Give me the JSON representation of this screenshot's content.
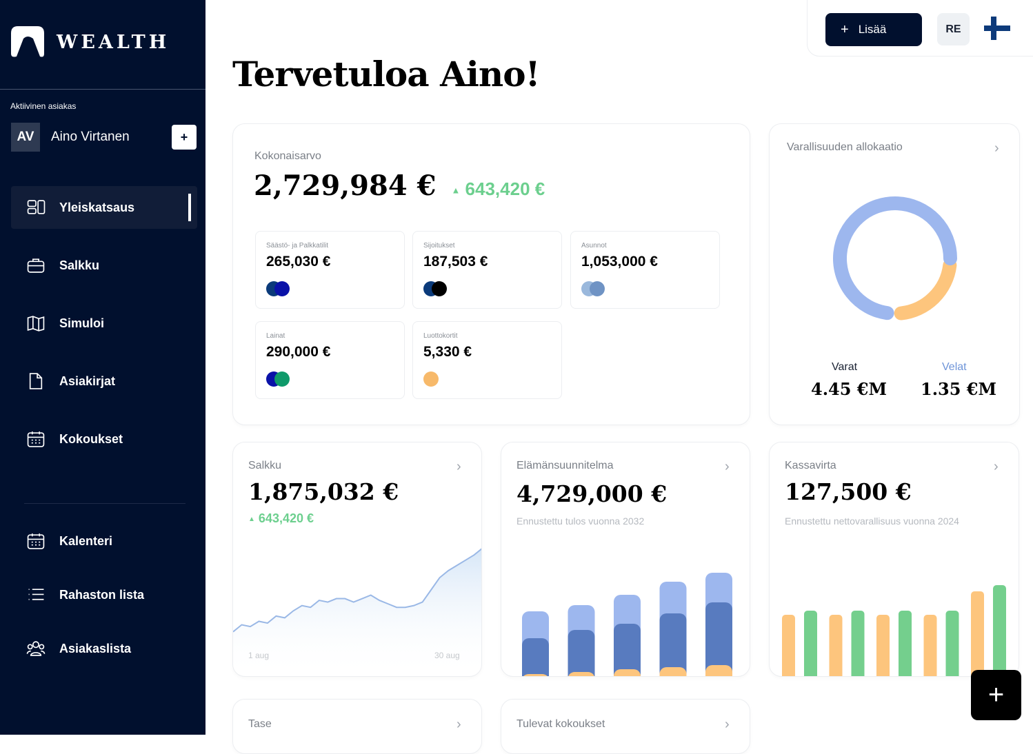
{
  "brand": {
    "name": "WEALTH"
  },
  "sidebar": {
    "active_client_label": "Aktiivinen asiakas",
    "client_initials": "AV",
    "client_name": "Aino Virtanen",
    "add_client": "+",
    "items": [
      {
        "label": "Yleiskatsaus",
        "icon": "dashboard-icon",
        "active": true
      },
      {
        "label": "Salkku",
        "icon": "briefcase-icon"
      },
      {
        "label": "Simuloi",
        "icon": "map-icon"
      },
      {
        "label": "Asiakirjat",
        "icon": "document-icon"
      },
      {
        "label": "Kokoukset",
        "icon": "calendar-icon"
      },
      {
        "label": "Kalenteri",
        "icon": "calendar-icon"
      },
      {
        "label": "Rahaston lista",
        "icon": "list-icon"
      },
      {
        "label": "Asiakaslista",
        "icon": "users-icon"
      }
    ]
  },
  "topbar": {
    "add_label": "Lisää",
    "add_icon": "+",
    "user_initials": "RE",
    "flag": "finland-flag-icon"
  },
  "greeting": "Tervetuloa Aino!",
  "total": {
    "title": "Kokonaisarvo",
    "value": "2,729,984 €",
    "change": "643,420 €",
    "accounts": [
      {
        "label": "Säästö- ja Palkkatilit",
        "value": "265,030 €",
        "logos": [
          "#0b3a7a",
          "#0a12a8"
        ]
      },
      {
        "label": "Sijoitukset",
        "value": "187,503 €",
        "logos": [
          "#0b3a7a",
          "#000000"
        ]
      },
      {
        "label": "Asunnot",
        "value": "1,053,000 €",
        "logos": [
          "#9ab8dc",
          "#6f93c4"
        ]
      },
      {
        "label": "Lainat",
        "value": "290,000 €",
        "logos": [
          "#0a12a8",
          "#0f9a6a"
        ]
      },
      {
        "label": "Luottokortit",
        "value": "5,330 €",
        "logos": [
          "#f7b96a"
        ]
      }
    ]
  },
  "allocation": {
    "title": "Varallisuuden allokaatio",
    "assets_label": "Varat",
    "assets": "4.45 €M",
    "liabilities_label": "Velat",
    "liabilities": "1.35 €M",
    "colors": {
      "assets": "#9db7ee",
      "liabilities": "#fdc57d"
    }
  },
  "portfolio": {
    "title": "Salkku",
    "value": "1,875,032 €",
    "change": "643,420 €",
    "start_label": "1 aug",
    "end_label": "30 aug"
  },
  "lifeplan": {
    "title": "Elämänsuunnitelma",
    "value": "4,729,000 €",
    "note": "Ennustettu tulos vuonna 2032"
  },
  "cashflow": {
    "title": "Kassavirta",
    "value": "127,500 €",
    "note": "Ennustettu nettovarallisuus vuonna 2024"
  },
  "balance": {
    "title": "Tase"
  },
  "meetings": {
    "title": "Tulevat kokoukset"
  },
  "chart_data": [
    {
      "type": "area",
      "name_ref": "Salkku",
      "x_labels": [
        "1 aug",
        "30 aug"
      ],
      "values": [
        100,
        108,
        106,
        112,
        110,
        118,
        116,
        124,
        130,
        128,
        136,
        134,
        138,
        138,
        134,
        138,
        142,
        136,
        132,
        128,
        128,
        130,
        134,
        148,
        162,
        170,
        176,
        182,
        188,
        196
      ]
    },
    {
      "type": "bar",
      "stacked": true,
      "name_ref": "Elämänsuunnitelma",
      "series": [
        {
          "values": [
            4,
            7,
            11,
            14,
            17
          ],
          "color": "#fdc57d"
        },
        {
          "values": [
            52,
            61,
            66,
            78,
            91
          ],
          "color": "#587bbf"
        },
        {
          "values": [
            39,
            36,
            42,
            46,
            43
          ],
          "color": "#9db7ee"
        }
      ]
    },
    {
      "type": "bar",
      "name_ref": "Kassavirta",
      "series": [
        {
          "values": [
            90,
            90,
            90,
            90,
            124
          ],
          "color": "#fdc57d"
        },
        {
          "values": [
            96,
            96,
            96,
            96,
            133
          ],
          "color": "#74cf8d"
        }
      ]
    }
  ]
}
